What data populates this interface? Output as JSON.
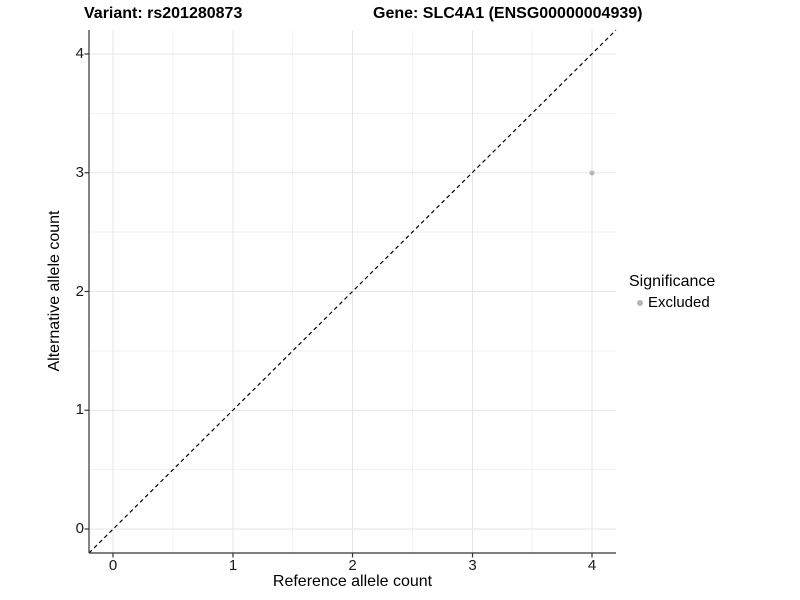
{
  "chart_data": {
    "type": "scatter",
    "title_left": "Variant: rs201280873",
    "title_right": "Gene: SLC4A1 (ENSG00000004939)",
    "xlabel": "Reference allele count",
    "ylabel": "Alternative allele count",
    "xlim": [
      -0.2,
      4.2
    ],
    "ylim": [
      -0.2,
      4.2
    ],
    "xticks": [
      "0",
      "1",
      "2",
      "3",
      "4"
    ],
    "yticks": [
      "0",
      "1",
      "2",
      "3",
      "4"
    ],
    "grid": {
      "major": true,
      "minor": true,
      "major_color": "#e6e6e6",
      "minor_color": "#f2f2f2"
    },
    "reference_line": {
      "equation": "y = x",
      "style": "dashed",
      "color": "#000000"
    },
    "series": [
      {
        "name": "Excluded",
        "color": "#b5b5b5",
        "points": [
          {
            "x": 4,
            "y": 3
          }
        ]
      }
    ],
    "legend": {
      "title": "Significance",
      "position": "right",
      "items": [
        {
          "label": "Excluded",
          "color": "#b5b5b5"
        }
      ]
    }
  },
  "colors": {
    "background": "#ffffff",
    "axis": "#333333",
    "text": "#000000"
  }
}
